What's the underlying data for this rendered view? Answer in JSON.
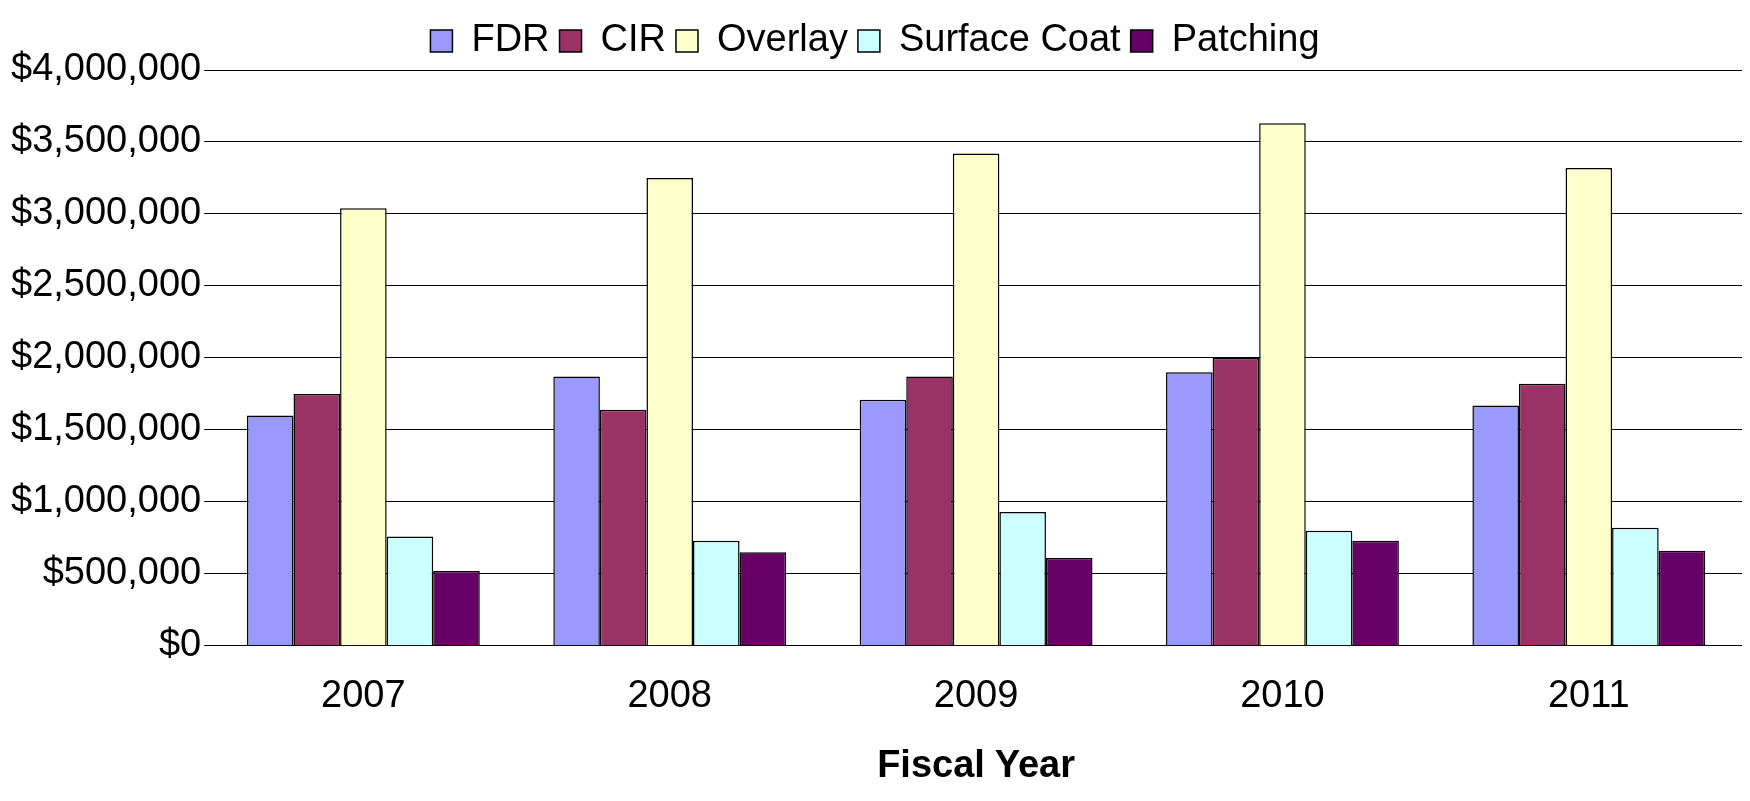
{
  "chart_data": {
    "type": "bar",
    "xlabel": "Fiscal Year",
    "categories": [
      "2007",
      "2008",
      "2009",
      "2010",
      "2011"
    ],
    "series": [
      {
        "name": "FDR",
        "color": "#9999ff",
        "values": [
          1600000,
          1870000,
          1710000,
          1900000,
          1670000
        ]
      },
      {
        "name": "CIR",
        "color": "#993366",
        "values": [
          1750000,
          1640000,
          1870000,
          2000000,
          1820000
        ]
      },
      {
        "name": "Overlay",
        "color": "#ffffcc",
        "values": [
          3040000,
          3250000,
          3420000,
          3630000,
          3320000
        ]
      },
      {
        "name": "Surface Coat",
        "color": "#ccffff",
        "values": [
          760000,
          730000,
          930000,
          800000,
          820000
        ]
      },
      {
        "name": "Patching",
        "color": "#660066",
        "values": [
          520000,
          650000,
          610000,
          730000,
          660000
        ]
      }
    ],
    "ylim": [
      0,
      4000000
    ],
    "yticks": [
      {
        "value": 0,
        "label": "$0"
      },
      {
        "value": 500000,
        "label": "$500,000"
      },
      {
        "value": 1000000,
        "label": "$1,000,000"
      },
      {
        "value": 1500000,
        "label": "$1,500,000"
      },
      {
        "value": 2000000,
        "label": "$2,000,000"
      },
      {
        "value": 2500000,
        "label": "$2,500,000"
      },
      {
        "value": 3000000,
        "label": "$3,000,000"
      },
      {
        "value": 3500000,
        "label": "$3,500,000"
      },
      {
        "value": 4000000,
        "label": "$4,000,000"
      }
    ],
    "grid": "y",
    "legend": "top"
  }
}
